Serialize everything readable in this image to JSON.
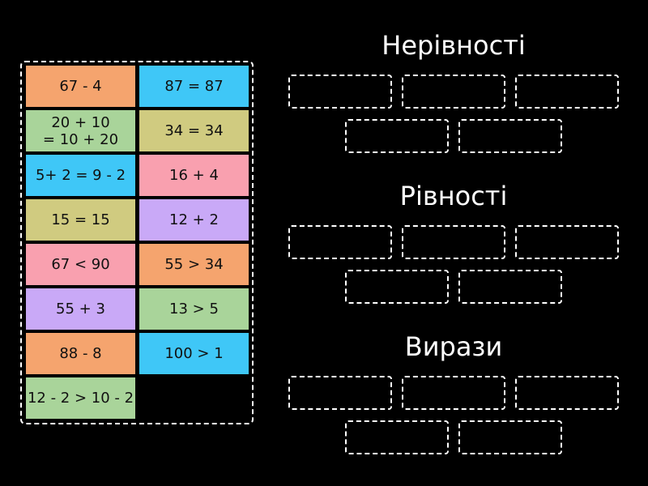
{
  "tiles": [
    {
      "text": "67 - 4",
      "color": "#F5A46E"
    },
    {
      "text": "87 = 87",
      "color": "#3FC7F7"
    },
    {
      "text": "20 + 10\n= 10 + 20",
      "color": "#A9D49A"
    },
    {
      "text": "34 = 34",
      "color": "#D0CB80"
    },
    {
      "text": "5+ 2 = 9 - 2",
      "color": "#3FC7F7"
    },
    {
      "text": "16 + 4",
      "color": "#F9A0AF"
    },
    {
      "text": "15 = 15",
      "color": "#D0CB80"
    },
    {
      "text": "12 + 2",
      "color": "#C9A9F7"
    },
    {
      "text": "67 < 90",
      "color": "#F9A0AF"
    },
    {
      "text": "55 > 34",
      "color": "#F5A46E"
    },
    {
      "text": "55 + 3",
      "color": "#C9A9F7"
    },
    {
      "text": "13 > 5",
      "color": "#A9D49A"
    },
    {
      "text": "88 - 8",
      "color": "#F5A46E"
    },
    {
      "text": "100 > 1",
      "color": "#3FC7F7"
    },
    {
      "text": "12 - 2 > 10 - 2",
      "color": "#A9D49A"
    }
  ],
  "groups": [
    {
      "title": "Нерівності"
    },
    {
      "title": "Рівності"
    },
    {
      "title": "Вирази"
    }
  ]
}
